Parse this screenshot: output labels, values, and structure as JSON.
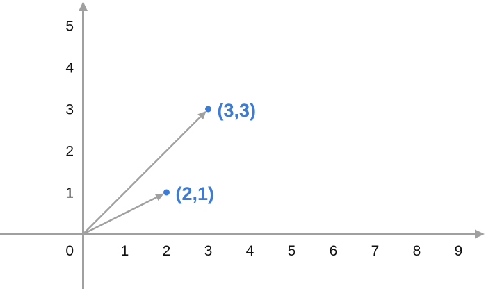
{
  "figure": {
    "background": "#ffffff",
    "description": "Coordinate plane with two vectors drawn from the origin to labeled points"
  },
  "chart_data": {
    "type": "scatter",
    "title": "",
    "xlabel": "",
    "ylabel": "",
    "xlim": [
      0,
      9.6
    ],
    "ylim": [
      0,
      5.6
    ],
    "grid": false,
    "x_ticks": [
      1,
      2,
      3,
      4,
      5,
      6,
      7,
      8,
      9
    ],
    "y_ticks": [
      1,
      2,
      3,
      4,
      5
    ],
    "origin_label": "0",
    "points": [
      {
        "x": 2,
        "y": 1,
        "label": "(2,1)"
      },
      {
        "x": 3,
        "y": 3,
        "label": "(3,3)"
      }
    ],
    "vectors": [
      {
        "from": [
          0,
          0
        ],
        "to": [
          2,
          1
        ]
      },
      {
        "from": [
          0,
          0
        ],
        "to": [
          3,
          3
        ]
      }
    ],
    "colors": {
      "axis": "#a0a0a0",
      "vector": "#a0a0a0",
      "point": "#3b7cd9",
      "point_label": "#3b7cd9",
      "tick_label": "#111111"
    }
  }
}
